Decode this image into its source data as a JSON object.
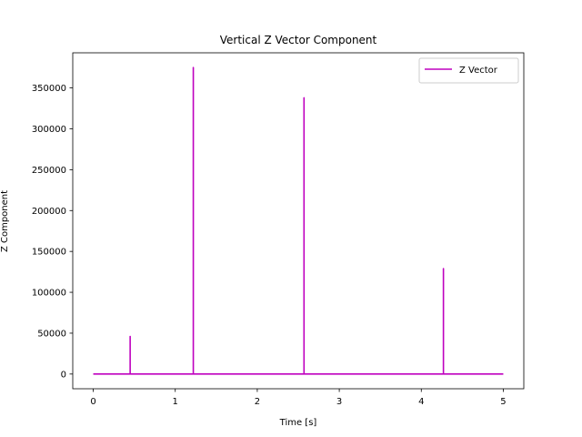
{
  "chart_data": {
    "type": "line",
    "title": "Vertical Z Vector Component",
    "xlabel": "Time [s]",
    "ylabel": "Z Component",
    "xlim": [
      -0.25,
      5.25
    ],
    "ylim": [
      -18000,
      393000
    ],
    "xticks": [
      0,
      1,
      2,
      3,
      4,
      5
    ],
    "xtick_labels": [
      "0",
      "1",
      "2",
      "3",
      "4",
      "5"
    ],
    "yticks": [
      0,
      50000,
      100000,
      150000,
      200000,
      250000,
      300000,
      350000
    ],
    "ytick_labels": [
      "0",
      "50000",
      "100000",
      "150000",
      "200000",
      "250000",
      "300000",
      "350000"
    ],
    "grid": false,
    "legend_position": "top-right",
    "series": [
      {
        "name": "Z Vector",
        "color": "#bf00bf",
        "x": [
          0,
          0.45,
          0.45,
          0.45,
          1.22,
          1.22,
          1.22,
          2.57,
          2.57,
          2.57,
          4.27,
          4.27,
          4.27,
          5.0
        ],
        "y": [
          0,
          0,
          46000,
          0,
          0,
          375000,
          0,
          0,
          338000,
          0,
          0,
          129000,
          0,
          0
        ]
      }
    ]
  }
}
